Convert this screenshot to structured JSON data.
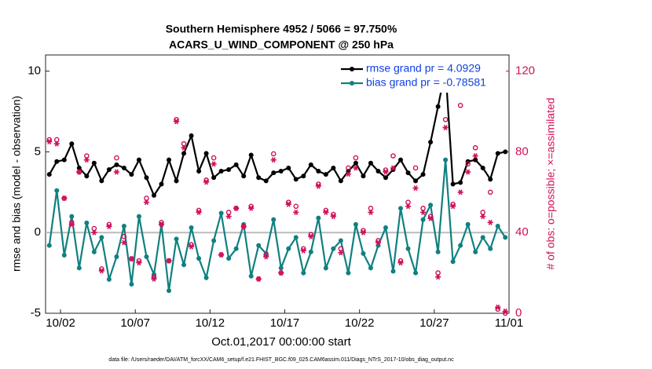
{
  "chart_data": {
    "type": "line",
    "title": "Southern Hemisphere 4952 / 5066 = 97.750%",
    "subtitle": "ACARS_U_WIND_COMPONENT @ 250 hPa",
    "xlabel": "Oct.01,2017 00:00:00 start",
    "ylabel": "rmse and bias (model - observation)",
    "y2label": "# of obs: o=possible; ×=assimilated",
    "footnote": "data file: /Users/raeder/DAI/ATM_forcXX/CAM6_setup/f.e21.FHIST_BGC.f09_025.CAM6assim.011/Diags_NTrS_2017-10/obs_diag_output.nc",
    "legend": "upper right",
    "xlim": [
      0,
      31
    ],
    "xticks": [
      {
        "value": 1,
        "label": "10/02"
      },
      {
        "value": 6,
        "label": "10/07"
      },
      {
        "value": 11,
        "label": "10/12"
      },
      {
        "value": 16,
        "label": "10/17"
      },
      {
        "value": 21,
        "label": "10/22"
      },
      {
        "value": 26,
        "label": "10/27"
      },
      {
        "value": 31,
        "label": "11/01"
      }
    ],
    "ylim": [
      -5,
      11
    ],
    "yticks": [
      -5,
      0,
      5,
      10
    ],
    "y2lim": [
      0,
      128
    ],
    "y2ticks": [
      0,
      40,
      80,
      120
    ],
    "x": [
      0.25,
      0.75,
      1.25,
      1.75,
      2.25,
      2.75,
      3.25,
      3.75,
      4.25,
      4.75,
      5.25,
      5.75,
      6.25,
      6.75,
      7.25,
      7.75,
      8.25,
      8.75,
      9.25,
      9.75,
      10.25,
      10.75,
      11.25,
      11.75,
      12.25,
      12.75,
      13.25,
      13.75,
      14.25,
      14.75,
      15.25,
      15.75,
      16.25,
      16.75,
      17.25,
      17.75,
      18.25,
      18.75,
      19.25,
      19.75,
      20.25,
      20.75,
      21.25,
      21.75,
      22.25,
      22.75,
      23.25,
      23.75,
      24.25,
      24.75,
      25.25,
      25.75,
      26.25,
      26.75,
      27.25,
      27.75,
      28.25,
      28.75,
      29.25,
      29.75,
      30.25,
      30.75
    ],
    "series": [
      {
        "name": "rmse grand pr = 4.0929",
        "color": "#000000",
        "marker": "dot",
        "values": [
          3.6,
          4.4,
          4.5,
          5.5,
          4.0,
          3.5,
          4.3,
          3.2,
          3.9,
          4.2,
          4.0,
          3.6,
          4.5,
          3.4,
          2.3,
          3.0,
          4.5,
          3.2,
          4.9,
          6.0,
          3.8,
          4.9,
          3.4,
          3.8,
          3.9,
          4.2,
          3.5,
          4.8,
          3.4,
          3.2,
          3.7,
          3.8,
          4.0,
          3.3,
          3.5,
          4.2,
          3.8,
          3.6,
          4.0,
          3.2,
          3.8,
          4.3,
          3.5,
          4.3,
          3.8,
          3.4,
          3.9,
          4.5,
          3.7,
          3.2,
          3.6,
          5.6,
          7.8,
          10.1,
          3.0,
          3.1,
          4.4,
          4.5,
          4.0,
          3.3,
          4.9,
          5.0
        ]
      },
      {
        "name": "bias grand pr = -0.78581",
        "color": "#108080",
        "marker": "dot",
        "values": [
          -0.8,
          2.6,
          -1.4,
          1.0,
          -2.2,
          0.6,
          -1.2,
          -0.3,
          -2.9,
          -1.5,
          0.4,
          -3.2,
          1.0,
          -1.5,
          -2.6,
          0.5,
          -3.6,
          -0.4,
          -2.0,
          0.3,
          -1.6,
          -2.8,
          -0.5,
          1.2,
          -1.6,
          -1.0,
          0.5,
          -2.7,
          -0.8,
          -1.3,
          0.8,
          -2.2,
          -1.0,
          -0.3,
          -2.5,
          -1.2,
          0.9,
          -2.2,
          -1.0,
          -0.5,
          -2.5,
          0.5,
          -1.3,
          -2.2,
          -0.8,
          0.3,
          -2.4,
          1.5,
          -1.0,
          -2.5,
          0.8,
          1.7,
          -1.2,
          4.5,
          -1.8,
          -0.8,
          0.5,
          -1.2,
          -0.3,
          -1.0,
          0.4,
          -0.3
        ]
      },
      {
        "color": "#d0105a",
        "axis": "y2",
        "marker": "circle",
        "values": [
          86,
          86,
          57,
          45,
          70,
          78,
          42,
          22,
          44,
          77,
          38,
          27,
          26,
          57,
          18,
          45,
          26,
          96,
          84,
          34,
          51,
          66,
          77,
          29,
          50,
          52,
          43,
          53,
          17,
          29,
          79,
          20,
          55,
          53,
          32,
          39,
          64,
          51,
          49,
          32,
          72,
          77,
          41,
          52,
          36,
          71,
          78,
          26,
          55,
          72,
          52,
          48,
          20,
          96,
          54,
          103,
          74,
          82,
          50,
          60,
          2,
          0
        ]
      },
      {
        "color": "#d0105a",
        "axis": "y2",
        "marker": "star",
        "values": [
          85,
          84,
          57,
          44,
          70,
          76,
          40,
          21,
          43,
          70,
          35,
          27,
          25,
          55,
          17,
          44,
          26,
          95,
          82,
          33,
          50,
          65,
          74,
          29,
          48,
          52,
          43,
          52,
          17,
          28,
          76,
          20,
          54,
          50,
          31,
          38,
          63,
          50,
          48,
          30,
          69,
          72,
          40,
          50,
          35,
          70,
          72,
          25,
          53,
          62,
          50,
          47,
          18,
          92,
          53,
          60,
          70,
          78,
          48,
          45,
          3,
          1
        ]
      }
    ]
  }
}
